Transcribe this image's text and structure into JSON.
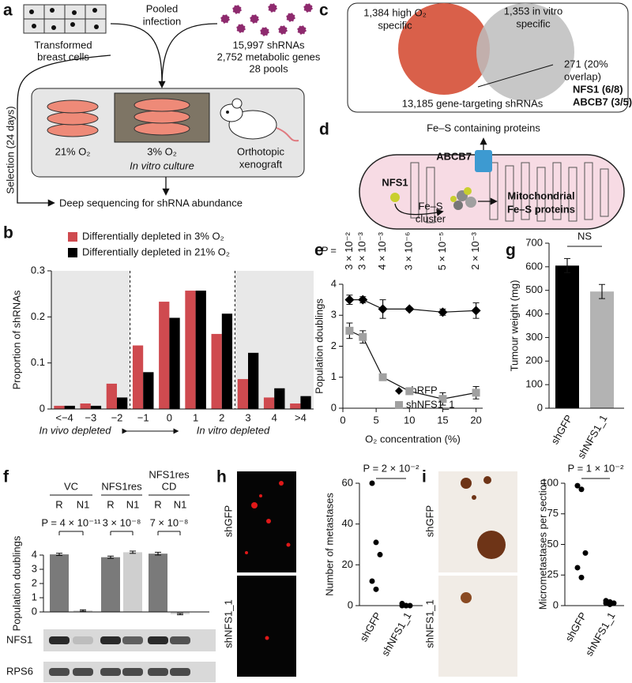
{
  "panel_labels": [
    "a",
    "b",
    "c",
    "d",
    "e",
    "f",
    "g",
    "h",
    "i"
  ],
  "panel_a": {
    "cells": [
      "Transformed",
      "breast cells"
    ],
    "infection": [
      "Pooled",
      "infection"
    ],
    "library": [
      "15,997 shRNAs",
      "2,752 metabolic genes",
      "28 pools"
    ],
    "selection": "Selection (24 days)",
    "conditions": [
      "21% O₂",
      "3% O₂"
    ],
    "in_vitro": "In vitro culture",
    "xenograft": [
      "Orthotopic",
      "xenograft"
    ],
    "sequencing": "Deep sequencing for shRNA abundance"
  },
  "panel_c": {
    "high_o2": [
      "1,384 high O₂",
      "specific"
    ],
    "in_vitro": [
      "1,353 in vitro",
      "specific"
    ],
    "overlap": [
      "271 (20%",
      "overlap)"
    ],
    "hits": [
      "NFS1 (6/8)",
      "ABCB7 (3/5)"
    ],
    "total": "13,185 gene-targeting shRNAs"
  },
  "panel_d": {
    "fes_proteins": "Fe–S containing proteins",
    "abcb7": "ABCB7",
    "nfs1": "NFS1",
    "cluster": [
      "Fe–S",
      "cluster"
    ],
    "mito": [
      "Mitochondrial",
      "Fe–S proteins"
    ]
  },
  "chart_data": [
    {
      "type": "bar",
      "ylabel": "Proportion of shRNAs",
      "categories": [
        "<−4",
        "−3",
        "−2",
        "−1",
        "0",
        "1",
        "2",
        "3",
        "4",
        ">4"
      ],
      "series": [
        {
          "name": "Differentially depleted in 3% O₂",
          "color": "#cf4a4f",
          "values": [
            0.007,
            0.012,
            0.055,
            0.138,
            0.233,
            0.257,
            0.163,
            0.065,
            0.025,
            0.012
          ]
        },
        {
          "name": "Differentially depleted in 21% O₂",
          "color": "#000000",
          "values": [
            0.007,
            0.007,
            0.025,
            0.08,
            0.198,
            0.257,
            0.207,
            0.122,
            0.045,
            0.028
          ]
        }
      ],
      "ylim": [
        0,
        0.3
      ],
      "yticks": [
        0,
        0.1,
        0.2,
        0.3
      ],
      "annotations": [
        "In vivo depleted",
        "In vitro depleted"
      ]
    },
    {
      "type": "line",
      "ylabel": "Population doublings",
      "xlabel": "O₂ concentration (%)",
      "x": [
        1,
        3,
        6,
        10,
        15,
        20
      ],
      "series": [
        {
          "name": "shRFP",
          "color": "#000000",
          "marker": "diamond",
          "values": [
            3.5,
            3.5,
            3.2,
            3.2,
            3.1,
            3.15
          ],
          "errors": [
            0.15,
            0.1,
            0.3,
            0.05,
            0.1,
            0.25
          ]
        },
        {
          "name": "shNFS1_1",
          "color": "#a0a0a0",
          "marker": "square",
          "values": [
            2.5,
            2.3,
            1.0,
            0.55,
            0.3,
            0.5
          ],
          "errors": [
            0.25,
            0.2,
            0.1,
            0.05,
            0.2,
            0.2
          ]
        }
      ],
      "xlim": [
        0,
        21
      ],
      "xticks": [
        0,
        5,
        10,
        15,
        20
      ],
      "ylim": [
        0,
        4
      ],
      "yticks": [
        0,
        1,
        2,
        3,
        4
      ],
      "p_label": "P =",
      "p_values": [
        "3 × 10⁻²",
        "3 × 10⁻³",
        "4 × 10⁻³",
        "3 × 10⁻⁶",
        "5 × 10⁻⁵",
        "2 × 10⁻³"
      ]
    },
    {
      "type": "bar",
      "ylabel": "Tumour weight (mg)",
      "categories": [
        "shGFP",
        "shNFS1_1"
      ],
      "values": [
        605,
        495
      ],
      "errors": [
        30,
        30
      ],
      "colors": [
        "#000000",
        "#b3b3b3"
      ],
      "ylim": [
        0,
        700
      ],
      "yticks": [
        0,
        100,
        200,
        300,
        400,
        500,
        600,
        700
      ],
      "annotation": "NS"
    },
    {
      "type": "bar",
      "ylabel": "Population doublings",
      "categories": [
        "R",
        "N1",
        "R",
        "N1",
        "R",
        "N1"
      ],
      "values": [
        4.05,
        0.1,
        3.85,
        4.2,
        4.1,
        -0.15
      ],
      "errors": [
        0.08,
        0.05,
        0.08,
        0.08,
        0.1,
        0.05
      ],
      "colors": [
        "#7a7a7a",
        "#cfcfcf",
        "#7a7a7a",
        "#cfcfcf",
        "#7a7a7a",
        "#cfcfcf"
      ],
      "ylim": [
        0,
        4
      ],
      "yticks": [
        0,
        1,
        2,
        3,
        4
      ],
      "groups": [
        [
          "VC"
        ],
        [
          "NFS1res"
        ],
        [
          "NFS1res",
          "CD"
        ]
      ],
      "p_values": [
        "P = 4 × 10⁻¹¹",
        "3 × 10⁻⁸",
        "7 × 10⁻⁸"
      ],
      "blot_labels": [
        "NFS1",
        "RPS6"
      ]
    },
    {
      "type": "strip",
      "ylabel": "Number of metastases",
      "categories": [
        "shGFP",
        "shNFS1_1"
      ],
      "values": [
        [
          60,
          31,
          25,
          12,
          8
        ],
        [
          1,
          0,
          0,
          0,
          0
        ]
      ],
      "color": "#000000",
      "ylim": [
        0,
        60
      ],
      "yticks": [
        0,
        20,
        40,
        60
      ],
      "p_value": "P = 2 × 10⁻²",
      "images": [
        "shGFP",
        "shNFS1_1"
      ]
    },
    {
      "type": "strip",
      "ylabel": "Micrometastases per section",
      "categories": [
        "shGFP",
        "shNFS1_1"
      ],
      "values": [
        [
          98,
          95,
          43,
          31,
          23
        ],
        [
          4,
          3,
          2,
          2,
          1
        ]
      ],
      "color": "#000000",
      "ylim": [
        0,
        100
      ],
      "yticks": [
        0,
        25,
        50,
        75,
        100
      ],
      "p_value": "P = 1 × 10⁻²",
      "images": [
        "shGFP",
        "shNFS1_1"
      ]
    }
  ]
}
